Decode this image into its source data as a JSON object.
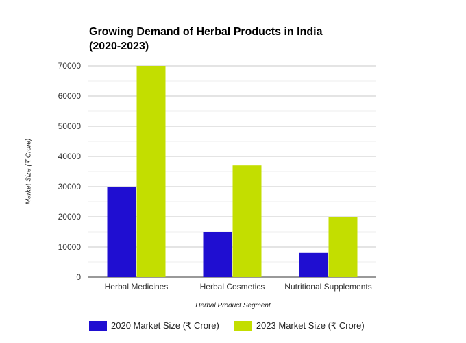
{
  "chart_data": {
    "type": "bar",
    "title_line1": "Growing Demand of Herbal Products in India",
    "title_line2": "(2020-2023)",
    "xlabel": "Herbal Product Segment",
    "ylabel": "Market Size (₹ Crore)",
    "categories": [
      "Herbal Medicines",
      "Herbal Cosmetics",
      "Nutritional Supplements"
    ],
    "series": [
      {
        "name": "2020 Market Size (₹ Crore)",
        "values": [
          30000,
          15000,
          8000
        ],
        "color": "#1f0ed1"
      },
      {
        "name": "2023 Market Size (₹ Crore)",
        "values": [
          70000,
          37000,
          20000
        ],
        "color": "#c3de00"
      }
    ],
    "ylim": [
      0,
      70000
    ],
    "yticks": [
      0,
      10000,
      20000,
      30000,
      40000,
      50000,
      60000,
      70000
    ],
    "grid": true,
    "legend_position": "bottom-left"
  }
}
